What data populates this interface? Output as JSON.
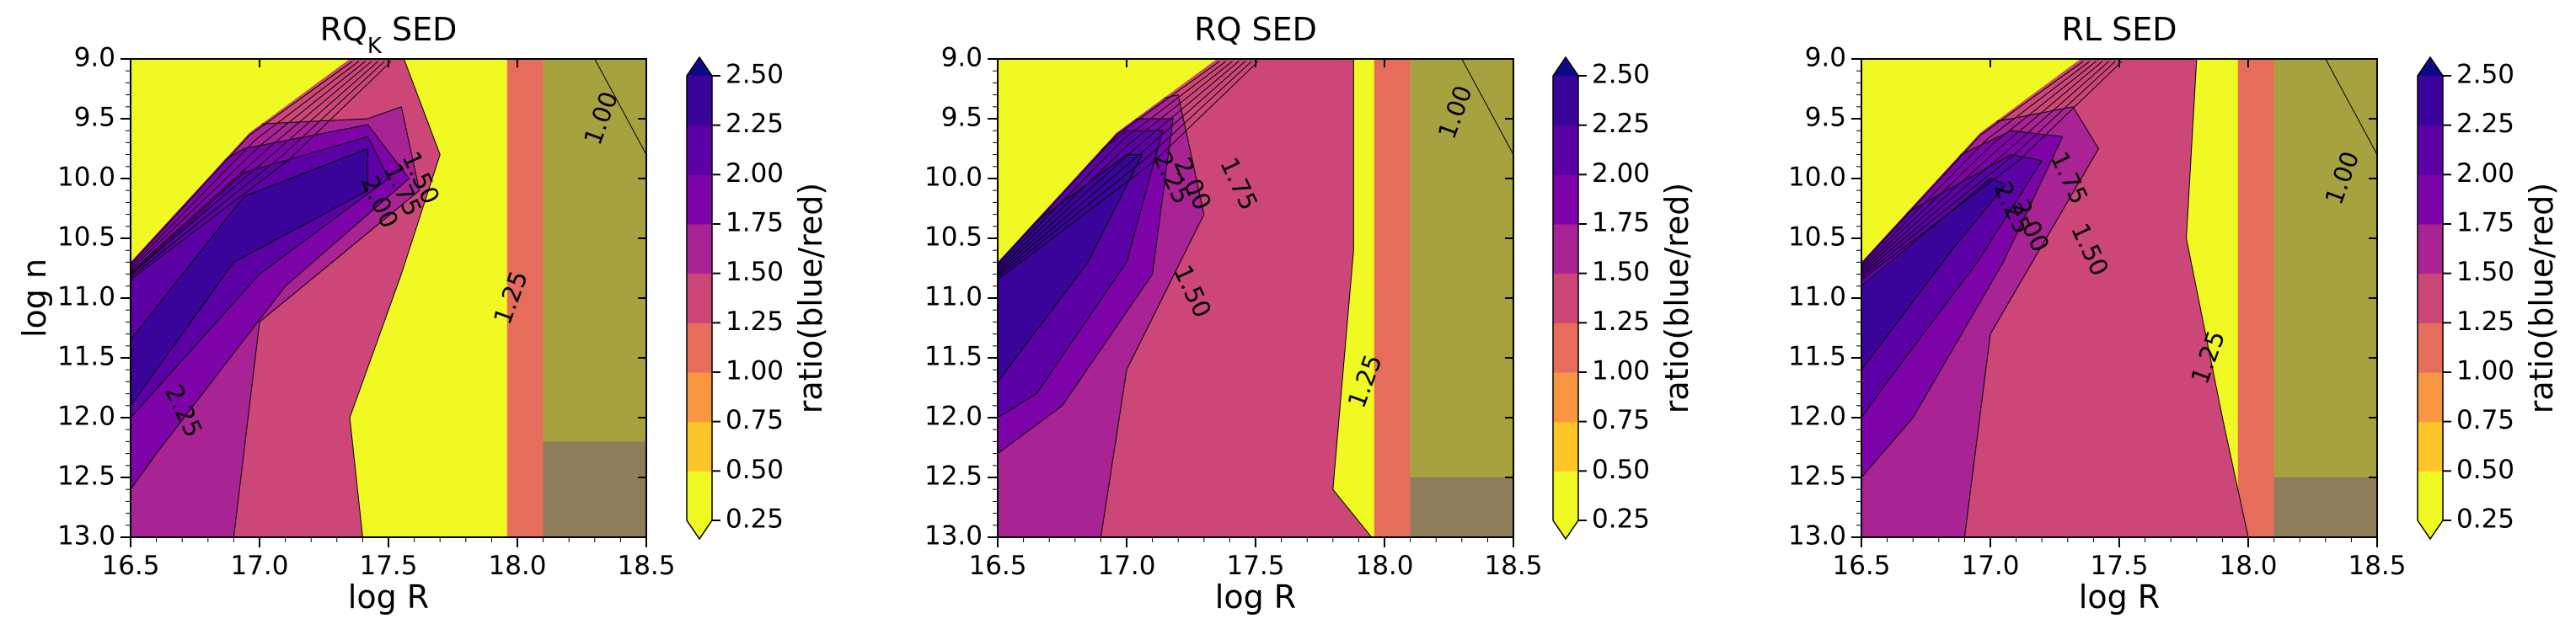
{
  "figure": {
    "xlabel": "log R",
    "ylabel": "log n",
    "colorbar_label": "ratio(blue/red)",
    "colorbar_ticks": [
      "0.25",
      "0.50",
      "0.75",
      "1.00",
      "1.25",
      "1.50",
      "1.75",
      "2.00",
      "2.25",
      "2.50"
    ],
    "colorbar_colors": [
      "#f0f921",
      "#fdc527",
      "#f89540",
      "#e66c5c",
      "#cc4778",
      "#aa2395",
      "#7e03a8",
      "#5c01a6",
      "#3a049a",
      "#0d0887"
    ],
    "masked_region_colors": {
      "upper": "#a6a23f",
      "lower": "#8e7d5b"
    }
  },
  "chart_data": [
    {
      "type": "contourf",
      "title_main": "RQ",
      "title_sub": "K",
      "title_rest": " SED",
      "xlabel": "log R",
      "ylabel": "log n",
      "xlim": [
        16.5,
        18.5
      ],
      "ylim": [
        13.0,
        9.0
      ],
      "x_ticks": [
        "16.5",
        "17.0",
        "17.5",
        "18.0",
        "18.5"
      ],
      "y_ticks": [
        "9.0",
        "9.5",
        "10.0",
        "10.5",
        "11.0",
        "11.5",
        "12.0",
        "12.5",
        "13.0"
      ],
      "levels": [
        0.25,
        0.5,
        0.75,
        1.0,
        1.25,
        1.5,
        1.75,
        2.0,
        2.25,
        2.5
      ],
      "masked_region_x_start": 18.1,
      "masked_region_lower_y_start": 12.2,
      "contour_labels": [
        {
          "text": "1.00",
          "x": 18.33,
          "y": 9.5
        },
        {
          "text": "1.25",
          "x": 17.98,
          "y": 11.0
        },
        {
          "text": "1.50",
          "x": 17.62,
          "y": 10.0
        },
        {
          "text": "1.75",
          "x": 17.55,
          "y": 10.1
        },
        {
          "text": "2.00",
          "x": 17.46,
          "y": 10.2
        },
        {
          "text": "2.25",
          "x": 16.7,
          "y": 11.95
        }
      ]
    },
    {
      "type": "contourf",
      "title_main": "RQ SED",
      "title_sub": "",
      "title_rest": "",
      "xlabel": "log R",
      "ylabel": "",
      "xlim": [
        16.5,
        18.5
      ],
      "ylim": [
        13.0,
        9.0
      ],
      "x_ticks": [
        "16.5",
        "17.0",
        "17.5",
        "18.0",
        "18.5"
      ],
      "y_ticks": [
        "9.0",
        "9.5",
        "10.0",
        "10.5",
        "11.0",
        "11.5",
        "12.0",
        "12.5",
        "13.0"
      ],
      "levels": [
        0.25,
        0.5,
        0.75,
        1.0,
        1.25,
        1.5,
        1.75,
        2.0,
        2.25,
        2.5
      ],
      "masked_region_x_start": 18.1,
      "masked_region_lower_y_start": 12.5,
      "contour_labels": [
        {
          "text": "1.00",
          "x": 18.28,
          "y": 9.45
        },
        {
          "text": "1.25",
          "x": 17.93,
          "y": 11.7
        },
        {
          "text": "1.50",
          "x": 17.25,
          "y": 10.95
        },
        {
          "text": "1.75",
          "x": 17.43,
          "y": 10.05
        },
        {
          "text": "2.00",
          "x": 17.25,
          "y": 10.05
        },
        {
          "text": "2.25",
          "x": 17.17,
          "y": 10.0
        }
      ]
    },
    {
      "type": "contourf",
      "title_main": "RL SED",
      "title_sub": "",
      "title_rest": "",
      "xlabel": "log R",
      "ylabel": "",
      "xlim": [
        16.5,
        18.5
      ],
      "ylim": [
        13.0,
        9.0
      ],
      "x_ticks": [
        "16.5",
        "17.0",
        "17.5",
        "18.0",
        "18.5"
      ],
      "y_ticks": [
        "9.0",
        "9.5",
        "10.0",
        "10.5",
        "11.0",
        "11.5",
        "12.0",
        "12.5",
        "13.0"
      ],
      "levels": [
        0.25,
        0.5,
        0.75,
        1.0,
        1.25,
        1.5,
        1.75,
        2.0,
        2.25,
        2.5
      ],
      "masked_region_x_start": 18.1,
      "masked_region_lower_y_start": 12.5,
      "contour_labels": [
        {
          "text": "1.00",
          "x": 18.37,
          "y": 10.0
        },
        {
          "text": "1.25",
          "x": 17.85,
          "y": 11.5
        },
        {
          "text": "1.50",
          "x": 17.38,
          "y": 10.6
        },
        {
          "text": "1.75",
          "x": 17.3,
          "y": 10.0
        },
        {
          "text": "2.00",
          "x": 17.15,
          "y": 10.4
        },
        {
          "text": "2.25",
          "x": 17.08,
          "y": 10.25
        }
      ]
    }
  ]
}
